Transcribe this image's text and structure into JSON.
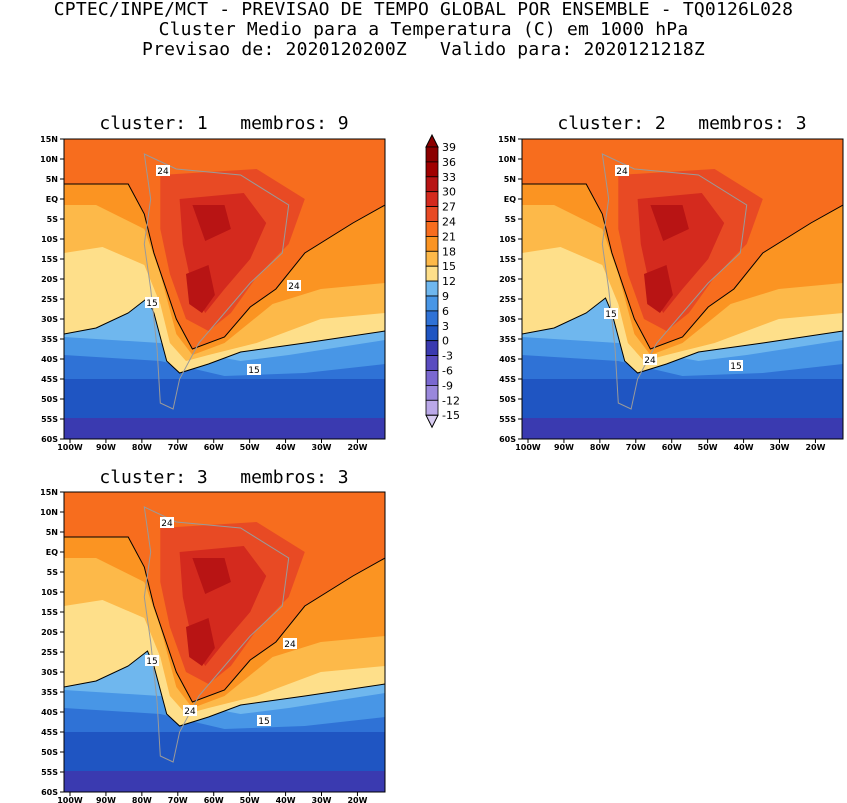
{
  "header": {
    "line1": "CPTEC/INPE/MCT - PREVISAO DE TEMPO GLOBAL POR ENSEMBLE - TQ0126L028",
    "line2": "Cluster Medio para a Temperatura (C) em 1000 hPa",
    "line3": "Previsao de: 2020120200Z   Valido para: 2020121218Z"
  },
  "axes": {
    "lat_labels": [
      "15N",
      "10N",
      "5N",
      "EQ",
      "5S",
      "10S",
      "15S",
      "20S",
      "25S",
      "30S",
      "35S",
      "40S",
      "45S",
      "50S",
      "55S",
      "60S"
    ],
    "lon_labels": [
      "100W",
      "90W",
      "80W",
      "70W",
      "60W",
      "50W",
      "40W",
      "30W",
      "20W"
    ]
  },
  "colorbar": {
    "labels": [
      "39",
      "36",
      "33",
      "30",
      "27",
      "24",
      "21",
      "18",
      "15",
      "12",
      "9",
      "6",
      "3",
      "0",
      "-3",
      "-6",
      "-9",
      "-12",
      "-15"
    ],
    "colors": [
      "#8b0000",
      "#a00000",
      "#b81414",
      "#d42a1e",
      "#e84a24",
      "#f76d1e",
      "#fb9422",
      "#fdb949",
      "#fedf8a",
      "#6fb7ee",
      "#4896e6",
      "#2f72d6",
      "#1f55c2",
      "#3a3ab0",
      "#5a4cc0",
      "#7a68d0",
      "#9a88dc",
      "#baa8e8",
      "#d8ccf2"
    ]
  },
  "panels": [
    {
      "title": "cluster: 1   membros: 9",
      "contour_labels": [
        "24",
        "24",
        "15",
        "15"
      ]
    },
    {
      "title": "cluster: 2   membros: 3",
      "contour_labels": [
        "24",
        "24",
        "15",
        "15"
      ]
    },
    {
      "title": "cluster: 3   membros: 3",
      "contour_labels": [
        "24",
        "24",
        "15",
        "15",
        "24"
      ]
    }
  ]
}
